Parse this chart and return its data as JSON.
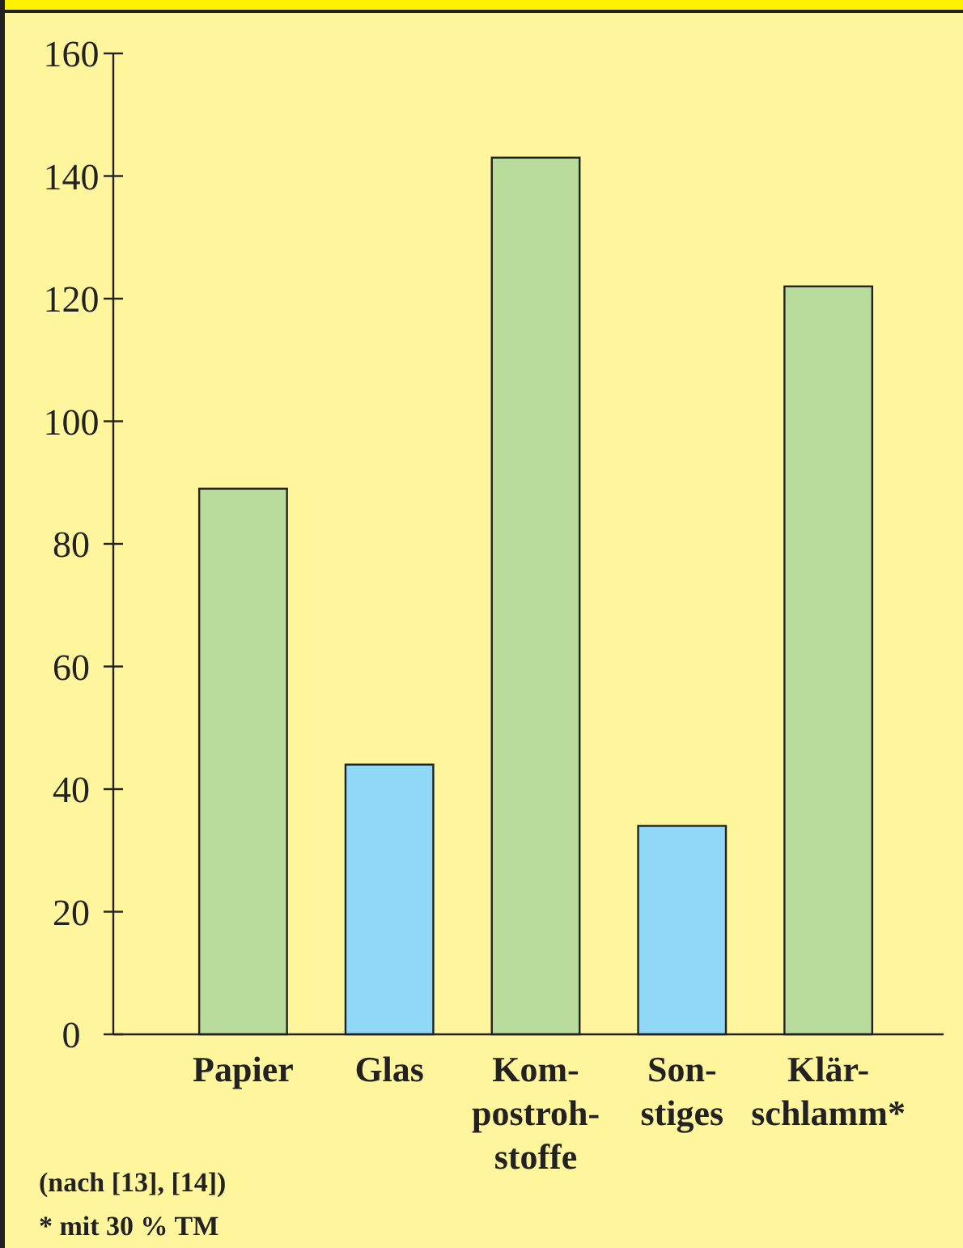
{
  "chart_data": {
    "type": "bar",
    "categories": [
      "Papier",
      "Glas",
      "Kom-\npostroh-\nstoffe",
      "Son-\nstiges",
      "Klär-\nschlamm*"
    ],
    "values": [
      89,
      44,
      143,
      34,
      122
    ],
    "colors": [
      "#b7dc9c",
      "#8fd8f6",
      "#b7dc9c",
      "#8fd8f6",
      "#b7dc9c"
    ],
    "ylim": [
      0,
      160
    ],
    "yticks": [
      0,
      20,
      40,
      60,
      80,
      100,
      120,
      140,
      160
    ],
    "annotations": [
      "(nach [13], [14])",
      "* mit 30 % TM"
    ]
  }
}
